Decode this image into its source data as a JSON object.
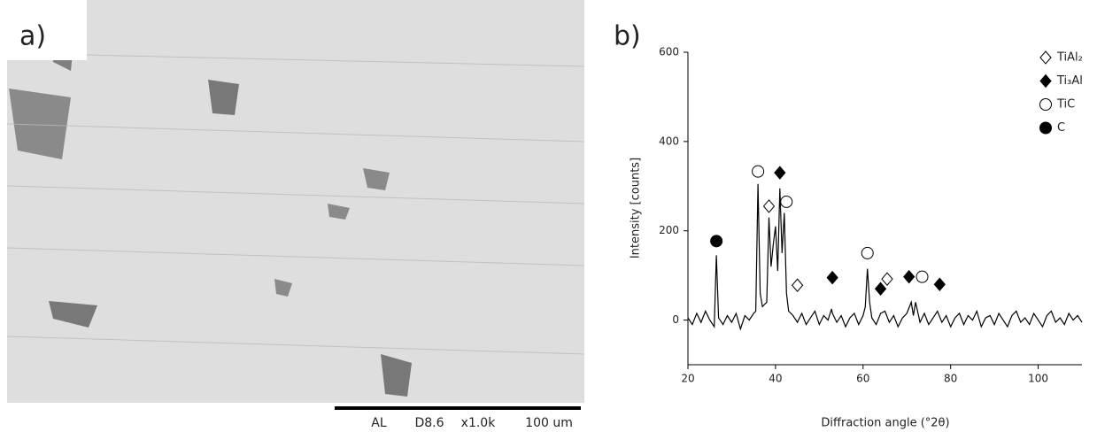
{
  "panel_a": {
    "label": "a)",
    "scale_bar": [
      "AL",
      "D8.6",
      "x1.0k",
      "100 um"
    ]
  },
  "chart_data": {
    "type": "line",
    "panel_label": "b)",
    "x_label": "Diffraction angle (°2θ)",
    "y_label": "Intensity [counts]",
    "xlim": [
      20,
      110
    ],
    "xticks": [
      20,
      40,
      60,
      80,
      100
    ],
    "ylim": [
      -100,
      600
    ],
    "yticks": [
      0,
      200,
      400,
      600
    ],
    "color": "#000000",
    "x": [
      20,
      21,
      22,
      23,
      24,
      25,
      26,
      26.5,
      27,
      28,
      29,
      30,
      31,
      32,
      33,
      34,
      35,
      35.5,
      36,
      36.5,
      37,
      38,
      38.5,
      39,
      39.5,
      40,
      40.5,
      41,
      41.5,
      42,
      42.5,
      43,
      44,
      45,
      46,
      47,
      48,
      49,
      50,
      51,
      52,
      52.8,
      53,
      54,
      55,
      56,
      57,
      58,
      59,
      60,
      60.5,
      61,
      61.5,
      62,
      63,
      64,
      65,
      66,
      67,
      68,
      69,
      70,
      71,
      71.5,
      72,
      73,
      74,
      75,
      76,
      77,
      78,
      79,
      80,
      81,
      82,
      83,
      84,
      85,
      86,
      87,
      88,
      89,
      90,
      91,
      92,
      93,
      94,
      95,
      96,
      97,
      98,
      99,
      100,
      101,
      102,
      103,
      104,
      105,
      106,
      107,
      108,
      109,
      110
    ],
    "values": [
      5,
      -10,
      15,
      -5,
      20,
      0,
      -15,
      145,
      5,
      -10,
      10,
      -5,
      15,
      -20,
      10,
      0,
      15,
      20,
      305,
      60,
      30,
      40,
      230,
      120,
      170,
      210,
      110,
      295,
      150,
      240,
      60,
      20,
      10,
      -5,
      15,
      -10,
      5,
      20,
      -10,
      10,
      0,
      25,
      15,
      -5,
      10,
      -15,
      5,
      15,
      -10,
      10,
      30,
      115,
      40,
      5,
      -10,
      15,
      20,
      -5,
      10,
      -15,
      5,
      15,
      40,
      10,
      40,
      -5,
      15,
      -10,
      5,
      20,
      -5,
      10,
      -15,
      5,
      15,
      -10,
      10,
      0,
      20,
      -15,
      5,
      10,
      -10,
      15,
      0,
      -15,
      10,
      20,
      -5,
      5,
      -10,
      15,
      0,
      -15,
      10,
      20,
      -5,
      5,
      -10,
      15,
      0,
      10,
      -5
    ],
    "markers": [
      {
        "name": "TiAl₂",
        "shape": "diamond",
        "filled": false,
        "x": [
          38.5,
          45,
          65.5
        ],
        "y": [
          255,
          78,
          92
        ]
      },
      {
        "name": "Ti₃Al",
        "shape": "diamond",
        "filled": true,
        "x": [
          41,
          53,
          64,
          70.5,
          77.5
        ],
        "y": [
          330,
          95,
          70,
          97,
          80
        ]
      },
      {
        "name": "TiC",
        "shape": "circle",
        "filled": false,
        "x": [
          36,
          42.5,
          61,
          73.5
        ],
        "y": [
          333,
          265,
          150,
          97
        ]
      },
      {
        "name": "C",
        "shape": "circle",
        "filled": true,
        "x": [
          26.5
        ],
        "y": [
          177
        ]
      }
    ]
  }
}
